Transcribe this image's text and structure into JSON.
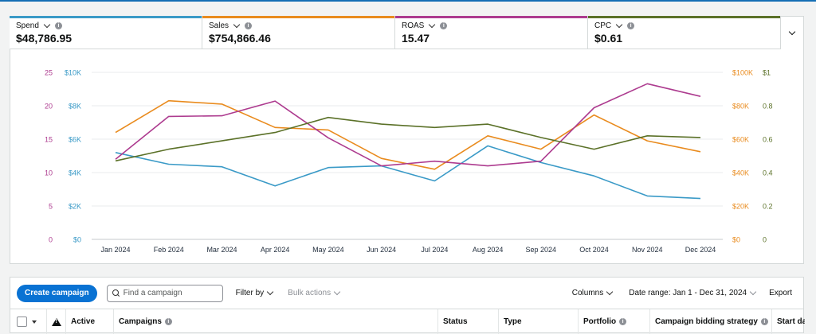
{
  "metrics": [
    {
      "label": "Spend",
      "value": "$48,786.95",
      "color": "#3a9ac7"
    },
    {
      "label": "Sales",
      "value": "$754,866.46",
      "color": "#e98b1e"
    },
    {
      "label": "ROAS",
      "value": "15.47",
      "color": "#ad3b8f"
    },
    {
      "label": "CPC",
      "value": "$0.61",
      "color": "#5b7128"
    }
  ],
  "chart_data": {
    "type": "line",
    "categories": [
      "Jan 2024",
      "Feb 2024",
      "Mar 2024",
      "Apr 2024",
      "May 2024",
      "Jun 2024",
      "Jul 2024",
      "Aug 2024",
      "Sep 2024",
      "Oct 2024",
      "Nov 2024",
      "Dec 2024"
    ],
    "axes": {
      "left_outer": {
        "ticks": [
          "25",
          "20",
          "15",
          "10",
          "5",
          "0"
        ],
        "color": "#ad3b8f"
      },
      "left_inner": {
        "ticks": [
          "$10K",
          "$8K",
          "$6K",
          "$4K",
          "$2K",
          "$0"
        ],
        "color": "#3a9ac7"
      },
      "right_inner": {
        "ticks": [
          "$100K",
          "$80K",
          "$60K",
          "$40K",
          "$20K",
          "$0"
        ],
        "color": "#e98b1e"
      },
      "right_outer": {
        "ticks": [
          "$1",
          "0.8",
          "0.6",
          "0.4",
          "0.2",
          "0"
        ],
        "color": "#5b7128"
      }
    },
    "series": [
      {
        "name": "Spend",
        "axis": "left_inner",
        "max": 10000,
        "color": "#3a9ac7",
        "values": [
          5200,
          4500,
          4350,
          3200,
          4300,
          4400,
          3500,
          5600,
          4600,
          3800,
          2600,
          2450
        ]
      },
      {
        "name": "Sales",
        "axis": "right_inner",
        "max": 100000,
        "color": "#e98b1e",
        "values": [
          64000,
          83000,
          81000,
          67000,
          65500,
          48500,
          42000,
          62000,
          54000,
          74500,
          59000,
          52500
        ]
      },
      {
        "name": "ROAS",
        "axis": "left_outer",
        "max": 25,
        "color": "#ad3b8f",
        "values": [
          12.0,
          18.4,
          18.5,
          20.7,
          15.2,
          11.0,
          11.7,
          11.0,
          11.7,
          19.7,
          23.3,
          21.4
        ]
      },
      {
        "name": "CPC",
        "axis": "right_outer",
        "max": 1,
        "color": "#5b7128",
        "values": [
          0.47,
          0.54,
          0.59,
          0.64,
          0.73,
          0.69,
          0.67,
          0.69,
          0.61,
          0.54,
          0.62,
          0.61
        ]
      }
    ],
    "grid": true
  },
  "toolbar": {
    "create_label": "Create campaign",
    "search_placeholder": "Find a campaign",
    "filter_label": "Filter by",
    "bulk_label": "Bulk actions",
    "columns_label": "Columns",
    "date_range_label": "Date range: Jan 1 - Dec 31, 2024",
    "export_label": "Export"
  },
  "table": {
    "headers": {
      "active": "Active",
      "campaigns": "Campaigns",
      "status": "Status",
      "type": "Type",
      "portfolio": "Portfolio",
      "bidding": "Campaign bidding strategy",
      "start": "Start date"
    }
  }
}
